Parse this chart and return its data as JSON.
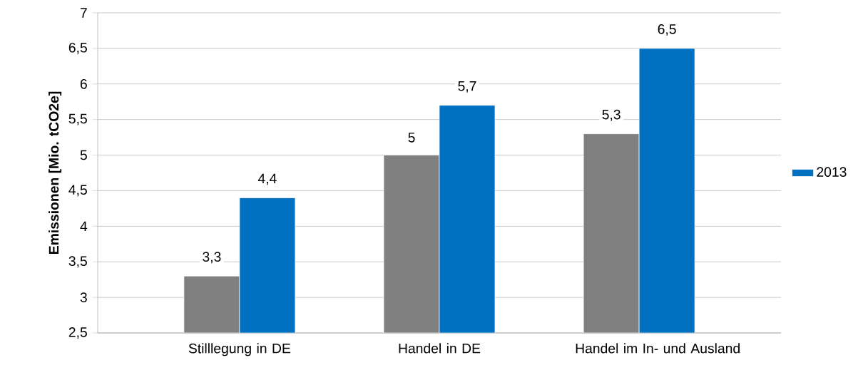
{
  "chart_data": {
    "type": "bar",
    "ylabel": "Emissionen [Mio. tCO2e]",
    "categories": [
      "Stilllegung in DE",
      "Handel in DE",
      "Handel im In- und Ausland"
    ],
    "series": [
      {
        "color": "#808080",
        "values": [
          3.3,
          5,
          5.3
        ],
        "value_labels": [
          "3,3",
          "5",
          "5,3"
        ]
      },
      {
        "name": "2013",
        "color": "#0070c0",
        "values": [
          4.4,
          5.7,
          6.5
        ],
        "value_labels": [
          "4,4",
          "5,7",
          "6,5"
        ]
      }
    ],
    "ylim": [
      2.5,
      7
    ],
    "yticks": [
      {
        "value": 2.5,
        "label": "2,5"
      },
      3,
      {
        "value": 3.5,
        "label": "3,5"
      },
      4,
      {
        "value": 4.5,
        "label": "4,5"
      },
      5,
      {
        "value": 5.5,
        "label": "5,5"
      },
      6,
      {
        "value": 6.5,
        "label": "6,5"
      },
      7
    ],
    "grid": "y",
    "legend": "right"
  }
}
